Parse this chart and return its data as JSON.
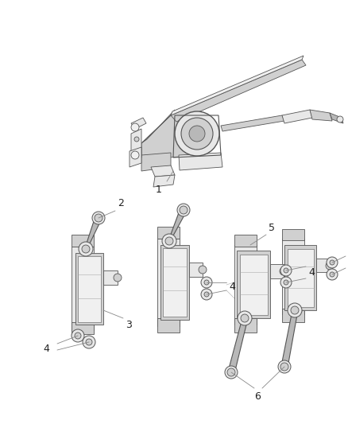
{
  "background_color": "#ffffff",
  "figure_width": 4.38,
  "figure_height": 5.33,
  "dpi": 100,
  "line_color": "#555555",
  "label_font_size": 8,
  "fill_light": "#e8e8e8",
  "fill_mid": "#d0d0d0",
  "fill_dark": "#b8b8b8",
  "fill_very_light": "#f0f0f0",
  "stroke_width": 0.6,
  "label_line_color": "#888888"
}
